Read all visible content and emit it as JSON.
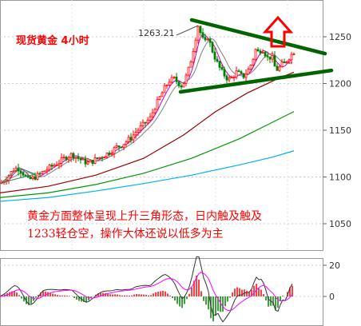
{
  "chart_title": "现货黄金  4小时",
  "annotation_lines": [
    "黄金方面整体呈现上升三角形态，日内触及触及",
    "1233轻仓空，操作大体还说以低多为主"
  ],
  "peak_label": "1263.21",
  "colors": {
    "up": "#ff0000",
    "down": "#008000",
    "title": "#ff0000",
    "annotation": "#ff0000",
    "trendline": "#006400",
    "arrow": "#ff0000",
    "ma_fast": "#cc00cc",
    "ma_mid": "#808080",
    "ma_slow1": "#990000",
    "ma_slow2": "#009900",
    "ma_slow3": "#00b0f0",
    "macd_dif": "#333333",
    "macd_dea": "#ff00ff"
  },
  "chart_data": [
    {
      "type": "candlestick",
      "title": "现货黄金  4小时",
      "y_ticks": [
        1050,
        1100,
        1150,
        1200,
        1250
      ],
      "ylim": [
        1030,
        1280
      ],
      "grid": true,
      "price_path": [
        {
          "x": 0,
          "y": 1093
        },
        {
          "x": 6,
          "y": 1097
        },
        {
          "x": 12,
          "y": 1103
        },
        {
          "x": 17,
          "y": 1108
        },
        {
          "x": 22,
          "y": 1110
        },
        {
          "x": 28,
          "y": 1105
        },
        {
          "x": 35,
          "y": 1097
        },
        {
          "x": 42,
          "y": 1099
        },
        {
          "x": 50,
          "y": 1103
        },
        {
          "x": 58,
          "y": 1108
        },
        {
          "x": 66,
          "y": 1112
        },
        {
          "x": 74,
          "y": 1116
        },
        {
          "x": 82,
          "y": 1121
        },
        {
          "x": 90,
          "y": 1124
        },
        {
          "x": 98,
          "y": 1120
        },
        {
          "x": 104,
          "y": 1117
        },
        {
          "x": 110,
          "y": 1115
        },
        {
          "x": 116,
          "y": 1117
        },
        {
          "x": 122,
          "y": 1120
        },
        {
          "x": 128,
          "y": 1122
        },
        {
          "x": 134,
          "y": 1125
        },
        {
          "x": 140,
          "y": 1128
        },
        {
          "x": 146,
          "y": 1132
        },
        {
          "x": 152,
          "y": 1134
        },
        {
          "x": 158,
          "y": 1138
        },
        {
          "x": 164,
          "y": 1142
        },
        {
          "x": 170,
          "y": 1148
        },
        {
          "x": 176,
          "y": 1153
        },
        {
          "x": 182,
          "y": 1158
        },
        {
          "x": 188,
          "y": 1163
        },
        {
          "x": 194,
          "y": 1175
        },
        {
          "x": 200,
          "y": 1185
        },
        {
          "x": 206,
          "y": 1195
        },
        {
          "x": 212,
          "y": 1203
        },
        {
          "x": 218,
          "y": 1205
        },
        {
          "x": 224,
          "y": 1200
        },
        {
          "x": 228,
          "y": 1197
        },
        {
          "x": 232,
          "y": 1205
        },
        {
          "x": 236,
          "y": 1215
        },
        {
          "x": 240,
          "y": 1228
        },
        {
          "x": 244,
          "y": 1245
        },
        {
          "x": 248,
          "y": 1262
        },
        {
          "x": 252,
          "y": 1252
        },
        {
          "x": 256,
          "y": 1242
        },
        {
          "x": 260,
          "y": 1250
        },
        {
          "x": 264,
          "y": 1240
        },
        {
          "x": 268,
          "y": 1230
        },
        {
          "x": 272,
          "y": 1222
        },
        {
          "x": 276,
          "y": 1215
        },
        {
          "x": 280,
          "y": 1210
        },
        {
          "x": 284,
          "y": 1206
        },
        {
          "x": 288,
          "y": 1204
        },
        {
          "x": 292,
          "y": 1208
        },
        {
          "x": 296,
          "y": 1212
        },
        {
          "x": 300,
          "y": 1210
        },
        {
          "x": 304,
          "y": 1207
        },
        {
          "x": 308,
          "y": 1211
        },
        {
          "x": 312,
          "y": 1216
        },
        {
          "x": 316,
          "y": 1224
        },
        {
          "x": 320,
          "y": 1236
        },
        {
          "x": 324,
          "y": 1233
        },
        {
          "x": 328,
          "y": 1238
        },
        {
          "x": 332,
          "y": 1232
        },
        {
          "x": 336,
          "y": 1226
        },
        {
          "x": 340,
          "y": 1230
        },
        {
          "x": 344,
          "y": 1218
        },
        {
          "x": 348,
          "y": 1214
        },
        {
          "x": 352,
          "y": 1220
        },
        {
          "x": 356,
          "y": 1222
        },
        {
          "x": 360,
          "y": 1226
        },
        {
          "x": 364,
          "y": 1230
        },
        {
          "x": 368,
          "y": 1234
        }
      ],
      "trendlines": [
        {
          "name": "upper",
          "x1": 240,
          "y1": 1268,
          "x2": 407,
          "y2": 1232
        },
        {
          "name": "lower",
          "x1": 226,
          "y1": 1191,
          "x2": 415,
          "y2": 1214
        }
      ],
      "moving_averages": [
        {
          "name": "ma-slow1",
          "points": [
            [
              0,
              1083
            ],
            [
              60,
              1090
            ],
            [
              120,
              1102
            ],
            [
              180,
              1120
            ],
            [
              230,
              1145
            ],
            [
              270,
              1170
            ],
            [
              310,
              1190
            ],
            [
              350,
              1206
            ],
            [
              368,
              1212
            ]
          ]
        },
        {
          "name": "ma-slow2",
          "points": [
            [
              0,
              1078
            ],
            [
              60,
              1083
            ],
            [
              120,
              1092
            ],
            [
              180,
              1104
            ],
            [
              240,
              1120
            ],
            [
              300,
              1141
            ],
            [
              340,
              1158
            ],
            [
              368,
              1170
            ]
          ]
        },
        {
          "name": "ma-slow3",
          "points": [
            [
              0,
              1074
            ],
            [
              60,
              1078
            ],
            [
              120,
              1085
            ],
            [
              180,
              1093
            ],
            [
              240,
              1102
            ],
            [
              300,
              1113
            ],
            [
              340,
              1121
            ],
            [
              368,
              1128
            ]
          ]
        }
      ],
      "macd": {
        "y_ticks": [
          0,
          20
        ],
        "ylim": [
          -12,
          24
        ]
      }
    }
  ]
}
